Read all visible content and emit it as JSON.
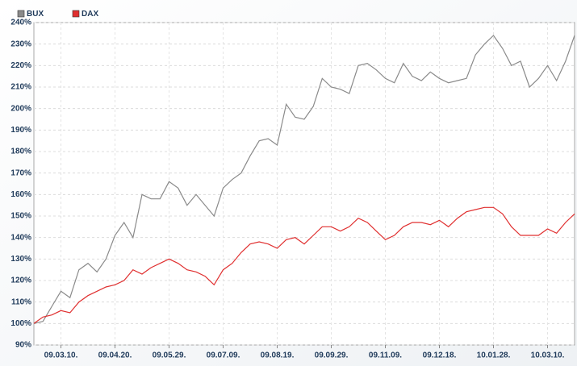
{
  "chart_data": {
    "type": "line",
    "categories": [
      null,
      null,
      null,
      "09.03.10.",
      null,
      null,
      null,
      null,
      null,
      "09.04.20.",
      null,
      null,
      null,
      null,
      null,
      "09.05.29.",
      null,
      null,
      null,
      null,
      null,
      "09.07.09.",
      null,
      null,
      null,
      null,
      null,
      "09.08.19.",
      null,
      null,
      null,
      null,
      null,
      "09.09.29.",
      null,
      null,
      null,
      null,
      null,
      "09.11.09.",
      null,
      null,
      null,
      null,
      null,
      "09.12.18.",
      null,
      null,
      null,
      null,
      null,
      "10.01.28.",
      null,
      null,
      null,
      null,
      null,
      "10.03.10.",
      null,
      null,
      null
    ],
    "series": [
      {
        "name": "BUX",
        "color": "#8a8a8a",
        "values": [
          100,
          101,
          108,
          115,
          112,
          125,
          128,
          124,
          130,
          141,
          147,
          140,
          160,
          158,
          158,
          166,
          163,
          155,
          160,
          155,
          150,
          163,
          167,
          170,
          178,
          185,
          186,
          183,
          202,
          196,
          195,
          201,
          214,
          210,
          209,
          207,
          220,
          221,
          218,
          214,
          212,
          221,
          215,
          213,
          217,
          214,
          212,
          213,
          214,
          225,
          230,
          234,
          228,
          220,
          222,
          210,
          214,
          220,
          213,
          222,
          234
        ]
      },
      {
        "name": "DAX",
        "color": "#e03030",
        "values": [
          100,
          103,
          104,
          106,
          105,
          110,
          113,
          115,
          117,
          118,
          120,
          125,
          123,
          126,
          128,
          130,
          128,
          125,
          124,
          122,
          118,
          125,
          128,
          133,
          137,
          138,
          137,
          135,
          139,
          140,
          137,
          141,
          145,
          145,
          143,
          145,
          149,
          147,
          143,
          139,
          141,
          145,
          147,
          147,
          146,
          148,
          145,
          149,
          152,
          153,
          154,
          154,
          151,
          145,
          141,
          141,
          141,
          144,
          142,
          147,
          151
        ]
      }
    ],
    "ylim": [
      90,
      240
    ],
    "yticks": [
      {
        "value": 90,
        "label": "90%"
      },
      {
        "value": 100,
        "label": "100%"
      },
      {
        "value": 110,
        "label": "110%"
      },
      {
        "value": 120,
        "label": "120%"
      },
      {
        "value": 130,
        "label": "130%"
      },
      {
        "value": 140,
        "label": "140%"
      },
      {
        "value": 150,
        "label": "150%"
      },
      {
        "value": 160,
        "label": "160%"
      },
      {
        "value": 170,
        "label": "170%"
      },
      {
        "value": 180,
        "label": "180%"
      },
      {
        "value": 190,
        "label": "190%"
      },
      {
        "value": 200,
        "label": "200%"
      },
      {
        "value": 210,
        "label": "210%"
      },
      {
        "value": 220,
        "label": "220%"
      },
      {
        "value": 230,
        "label": "230%"
      },
      {
        "value": 240,
        "label": "240%"
      }
    ],
    "grid": true,
    "legend": "top-left"
  }
}
